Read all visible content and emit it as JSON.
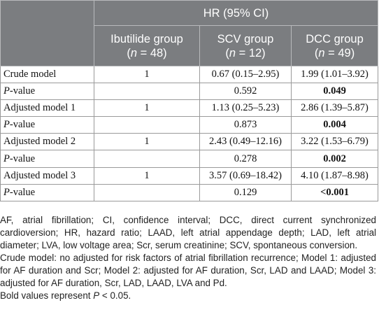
{
  "table": {
    "group_header": "HR (95% CI)",
    "columns": [
      {
        "name": "Ibutilide group",
        "n_prefix": "(",
        "n_var": "n",
        "n_value": " = 48)"
      },
      {
        "name": "SCV group",
        "n_prefix": "(",
        "n_var": "n",
        "n_value": " = 12)"
      },
      {
        "name": "DCC group",
        "n_prefix": "(",
        "n_var": "n",
        "n_value": " = 49)"
      }
    ],
    "rows": [
      {
        "label": "Crude model",
        "cells": [
          "1",
          "0.67 (0.15–2.95)",
          "1.99 (1.01–3.92)"
        ]
      },
      {
        "label_italic": "P",
        "label_rest": "-value",
        "cells": [
          "",
          "0.592",
          "0.049"
        ]
      },
      {
        "label": "Adjusted model 1",
        "cells": [
          "1",
          "1.13 (0.25–5.23)",
          "2.86 (1.39–5.87)"
        ]
      },
      {
        "label_italic": "P",
        "label_rest": "-value",
        "cells": [
          "",
          "0.873",
          "0.004"
        ]
      },
      {
        "label": "Adjusted model 2",
        "cells": [
          "1",
          "2.43 (0.49–12.16)",
          "3.22 (1.53–6.79)"
        ]
      },
      {
        "label_italic": "P",
        "label_rest": "-value",
        "cells": [
          "",
          "0.278",
          "0.002"
        ]
      },
      {
        "label": "Adjusted model 3",
        "cells": [
          "1",
          "3.57 (0.69–18.42)",
          "4.10 (1.87–8.98)"
        ]
      },
      {
        "label_italic": "P",
        "label_rest": "-value",
        "cells": [
          "",
          "0.129",
          "<0.001"
        ]
      }
    ]
  },
  "footnotes": {
    "abbreviations": "AF, atrial fibrillation; CI, confidence interval; DCC, direct current synchronized cardioversion; HR, hazard ratio; LAAD, left atrial appendage depth; LAD, left atrial diameter; LVA, low voltage area; Scr, serum creatinine; SCV, spontaneous conversion.",
    "models": "Crude model: no adjusted for risk factors of atrial fibrillation recurrence; Model 1: adjusted for AF duration and Scr; Model 2: adjusted for AF duration, Scr, LAD and LAAD; Model 3: adjusted for AF duration, Scr, LAD, LAAD, LVA and Pd.",
    "bold_prefix": "Bold values represent ",
    "bold_var": "P",
    "bold_suffix": " < 0.05."
  }
}
